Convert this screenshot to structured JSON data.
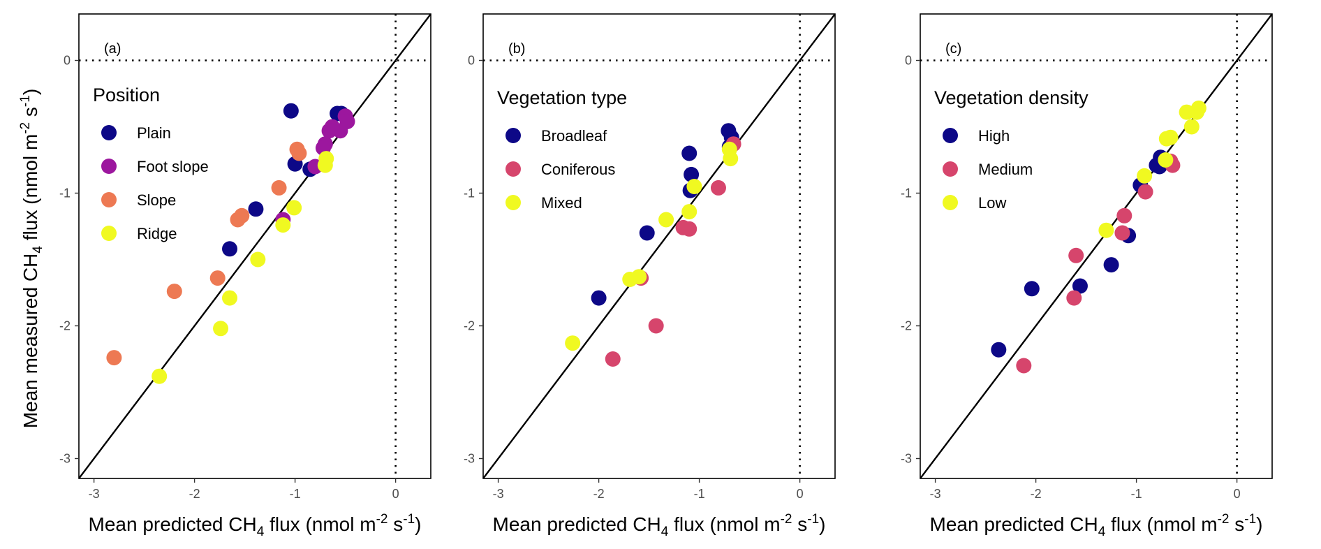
{
  "y_axis_label": {
    "prefix": "Mean measured CH",
    "sub": "4",
    "mid": " flux (nmol m",
    "sup1": "-2",
    "mid2": " s",
    "sup2": "-1",
    "suffix": ")"
  },
  "x_axis_label": {
    "prefix": "Mean predicted CH",
    "sub": "4",
    "mid": " flux (nmol m",
    "sup1": "-2",
    "mid2": " s",
    "sup2": "-1",
    "suffix": ")"
  },
  "chart_data": [
    {
      "type": "scatter",
      "panel_label": "(a)",
      "legend_title": "Position",
      "xlim": [
        -3.15,
        0.35
      ],
      "ylim": [
        -3.15,
        0.35
      ],
      "x_ticks": [
        -3,
        -2,
        -1,
        0
      ],
      "y_ticks": [
        -3,
        -2,
        -1,
        0
      ],
      "tick_labels": [
        "-3",
        "-2",
        "-1",
        "0"
      ],
      "reference_lines": [
        "y = x",
        "x = 0 (dotted)",
        "y = 0 (dotted)"
      ],
      "series": [
        {
          "name": "Plain",
          "color": "#0d0887",
          "points": [
            [
              -1.04,
              -0.38
            ],
            [
              -0.58,
              -0.4
            ],
            [
              -0.54,
              -0.4
            ],
            [
              -1.0,
              -0.78
            ],
            [
              -0.85,
              -0.82
            ],
            [
              -1.39,
              -1.12
            ],
            [
              -1.65,
              -1.42
            ]
          ]
        },
        {
          "name": "Foot slope",
          "color": "#9c179e",
          "points": [
            [
              -0.5,
              -0.42
            ],
            [
              -0.48,
              -0.46
            ],
            [
              -0.55,
              -0.53
            ],
            [
              -0.63,
              -0.5
            ],
            [
              -0.66,
              -0.53
            ],
            [
              -0.7,
              -0.63
            ],
            [
              -0.72,
              -0.66
            ],
            [
              -0.8,
              -0.8
            ],
            [
              -1.12,
              -1.2
            ]
          ]
        },
        {
          "name": "Slope",
          "color": "#ed7953",
          "points": [
            [
              -0.98,
              -0.67
            ],
            [
              -0.96,
              -0.7
            ],
            [
              -1.16,
              -0.96
            ],
            [
              -1.53,
              -1.17
            ],
            [
              -1.57,
              -1.2
            ],
            [
              -1.77,
              -1.64
            ],
            [
              -2.2,
              -1.74
            ],
            [
              -2.8,
              -2.24
            ]
          ]
        },
        {
          "name": "Ridge",
          "color": "#f0f921",
          "points": [
            [
              -0.69,
              -0.74
            ],
            [
              -0.7,
              -0.79
            ],
            [
              -1.01,
              -1.11
            ],
            [
              -1.12,
              -1.24
            ],
            [
              -1.37,
              -1.5
            ],
            [
              -1.65,
              -1.79
            ],
            [
              -1.74,
              -2.02
            ],
            [
              -2.35,
              -2.38
            ]
          ]
        }
      ]
    },
    {
      "type": "scatter",
      "panel_label": "(b)",
      "legend_title": "Vegetation type",
      "xlim": [
        -3.15,
        0.35
      ],
      "ylim": [
        -3.15,
        0.35
      ],
      "x_ticks": [
        -3,
        -2,
        -1,
        0
      ],
      "y_ticks": [
        -3,
        -2,
        -1,
        0
      ],
      "tick_labels": [
        "-3",
        "-2",
        "-1",
        "0"
      ],
      "reference_lines": [
        "y = x",
        "x = 0 (dotted)",
        "y = 0 (dotted)"
      ],
      "series": [
        {
          "name": "Broadleaf",
          "color": "#0d0887",
          "points": [
            [
              -0.71,
              -0.53
            ],
            [
              -0.68,
              -0.58
            ],
            [
              -0.7,
              -0.65
            ],
            [
              -1.1,
              -0.7
            ],
            [
              -1.08,
              -0.86
            ],
            [
              -1.09,
              -0.98
            ],
            [
              -1.52,
              -1.3
            ],
            [
              -2.0,
              -1.79
            ]
          ]
        },
        {
          "name": "Coniferous",
          "color": "#d6456c",
          "points": [
            [
              -0.66,
              -0.63
            ],
            [
              -0.81,
              -0.96
            ],
            [
              -1.16,
              -1.26
            ],
            [
              -1.1,
              -1.27
            ],
            [
              -1.58,
              -1.64
            ],
            [
              -1.43,
              -2.0
            ],
            [
              -1.86,
              -2.25
            ]
          ]
        },
        {
          "name": "Mixed",
          "color": "#f0f921",
          "points": [
            [
              -0.7,
              -0.67
            ],
            [
              -0.69,
              -0.74
            ],
            [
              -1.05,
              -0.95
            ],
            [
              -1.1,
              -1.14
            ],
            [
              -1.33,
              -1.2
            ],
            [
              -1.69,
              -1.65
            ],
            [
              -1.6,
              -1.63
            ],
            [
              -2.26,
              -2.13
            ]
          ]
        }
      ]
    },
    {
      "type": "scatter",
      "panel_label": "(c)",
      "legend_title": "Vegetation density",
      "xlim": [
        -3.15,
        0.35
      ],
      "ylim": [
        -3.15,
        0.35
      ],
      "x_ticks": [
        -3,
        -2,
        -1,
        0
      ],
      "y_ticks": [
        -3,
        -2,
        -1,
        0
      ],
      "tick_labels": [
        "-3",
        "-2",
        "-1",
        "0"
      ],
      "reference_lines": [
        "y = x",
        "x = 0 (dotted)",
        "y = 0 (dotted)"
      ],
      "series": [
        {
          "name": "High",
          "color": "#0d0887",
          "points": [
            [
              -0.76,
              -0.73
            ],
            [
              -0.8,
              -0.79
            ],
            [
              -0.77,
              -0.8
            ],
            [
              -0.96,
              -0.94
            ],
            [
              -1.08,
              -1.32
            ],
            [
              -1.25,
              -1.54
            ],
            [
              -1.56,
              -1.7
            ],
            [
              -2.04,
              -1.72
            ],
            [
              -2.37,
              -2.18
            ]
          ]
        },
        {
          "name": "Medium",
          "color": "#d6456c",
          "points": [
            [
              -0.66,
              -0.76
            ],
            [
              -0.64,
              -0.79
            ],
            [
              -0.91,
              -0.99
            ],
            [
              -1.12,
              -1.17
            ],
            [
              -1.14,
              -1.3
            ],
            [
              -1.6,
              -1.47
            ],
            [
              -1.62,
              -1.79
            ],
            [
              -2.12,
              -2.3
            ]
          ]
        },
        {
          "name": "Low",
          "color": "#f0f921",
          "points": [
            [
              -0.38,
              -0.36
            ],
            [
              -0.4,
              -0.39
            ],
            [
              -0.5,
              -0.39
            ],
            [
              -0.45,
              -0.5
            ],
            [
              -0.66,
              -0.58
            ],
            [
              -0.7,
              -0.59
            ],
            [
              -0.71,
              -0.75
            ],
            [
              -0.92,
              -0.87
            ],
            [
              -1.3,
              -1.28
            ]
          ]
        }
      ]
    }
  ]
}
